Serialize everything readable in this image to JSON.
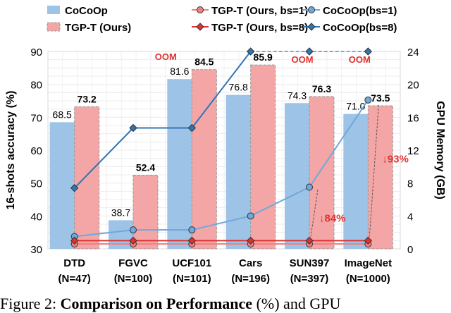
{
  "chart_data": {
    "type": "bar",
    "categories": [
      "DTD\n(N=47)",
      "FGVC\n(N=100)",
      "UCF101\n(N=101)",
      "Cars\n(N=196)",
      "SUN397\n(N=397)",
      "ImageNet\n(N=1000)"
    ],
    "category_lines": [
      [
        "DTD",
        "(N=47)"
      ],
      [
        "FGVC",
        "(N=100)"
      ],
      [
        "UCF101",
        "(N=101)"
      ],
      [
        "Cars",
        "(N=196)"
      ],
      [
        "SUN397",
        "(N=397)"
      ],
      [
        "ImageNet",
        "(N=1000)"
      ]
    ],
    "ylabel": "16-shots accuracy (%)",
    "ylim": [
      30,
      90
    ],
    "yticks": [
      30,
      40,
      50,
      60,
      70,
      80,
      90
    ],
    "y2label": "GPU Memory (GB)",
    "y2lim": [
      0,
      24
    ],
    "y2ticks": [
      0,
      4,
      8,
      12,
      16,
      20,
      24
    ],
    "grid": true,
    "legend_placement": "top",
    "bar_series": [
      {
        "name": "CoCoOp",
        "values": [
          68.5,
          38.7,
          81.6,
          76.8,
          74.3,
          71.0
        ],
        "labels": [
          "68.5",
          "38.7",
          "81.6",
          "76.8",
          "74.3",
          "71.0"
        ],
        "color": "#9dc3e6"
      },
      {
        "name": "TGP-T (Ours)",
        "values": [
          73.2,
          52.4,
          84.5,
          85.9,
          76.3,
          73.5
        ],
        "labels": [
          "73.2",
          "52.4",
          "84.5",
          "85.9",
          "76.3",
          "73.5"
        ],
        "color": "#f4a6a6"
      }
    ],
    "line_series": [
      {
        "name": "TGP-T (Ours, bs=1)",
        "axis": "right",
        "marker": "circle",
        "values": [
          0.6,
          0.6,
          0.6,
          0.6,
          0.6,
          0.6
        ],
        "color": "#f08080"
      },
      {
        "name": "CoCoOp(bs=1)",
        "axis": "right",
        "marker": "circle",
        "values": [
          1.5,
          2.3,
          2.3,
          4.0,
          7.5,
          18.1
        ],
        "color": "#6fa8dc"
      },
      {
        "name": "TGP-T (Ours, bs=8)",
        "axis": "right",
        "marker": "diamond",
        "values": [
          1.0,
          1.0,
          1.0,
          1.0,
          1.0,
          1.0
        ],
        "color": "#e03030"
      },
      {
        "name": "CoCoOp(bs=8)",
        "axis": "right",
        "marker": "diamond",
        "values": [
          7.4,
          14.7,
          14.7,
          24,
          24,
          24
        ],
        "color": "#2e75b6"
      }
    ],
    "annotations": {
      "oom": [
        "OOM",
        "OOM",
        "OOM"
      ],
      "reduction_sun397": "↓84%",
      "reduction_imagenet": "↓93%"
    }
  },
  "caption": {
    "prefix": "Figure 2: ",
    "bold": "Comparison on Performance",
    "rest": " (%) and GPU"
  }
}
